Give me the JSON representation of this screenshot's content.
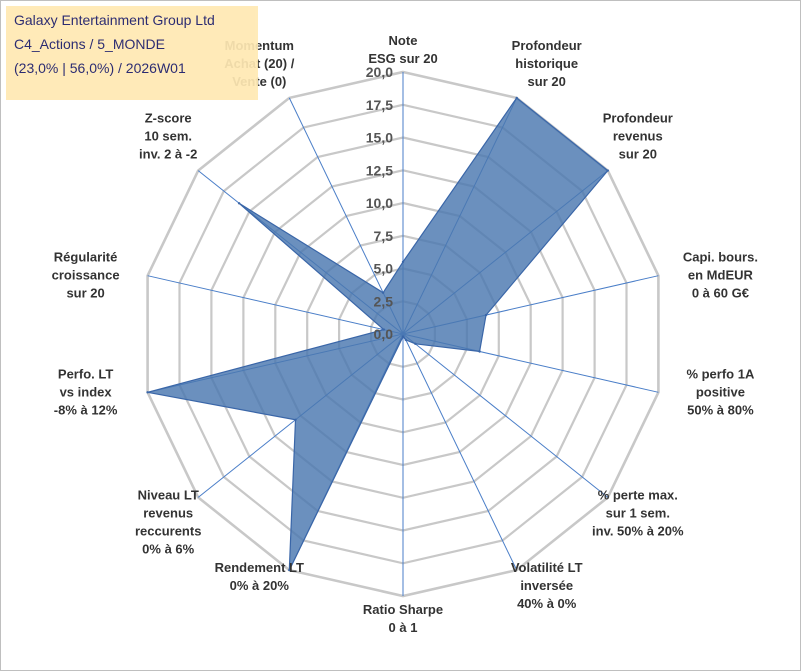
{
  "info": {
    "company": "Galaxy Entertainment Group Ltd",
    "category": "C4_Actions / 5_MONDE",
    "ratio": "(23,0% | 56,0%) / 2026W01"
  },
  "colors": {
    "fill": "#4a78b0",
    "stroke": "#3a66a8",
    "grid": "#c8c8c8",
    "spoke": "#4a7ec8"
  },
  "chart_data": {
    "type": "radar",
    "rmin": 0,
    "rmax": 20,
    "ticks": [
      "0,0",
      "2,5",
      "5,0",
      "7,5",
      "10,0",
      "12,5",
      "15,0",
      "17,5",
      "20,0"
    ],
    "axes": [
      {
        "label": [
          "Note",
          "ESG sur 20"
        ],
        "value": 5.5
      },
      {
        "label": [
          "Profondeur",
          "historique",
          "sur 20"
        ],
        "value": 20
      },
      {
        "label": [
          "Profondeur",
          "revenus",
          "sur 20"
        ],
        "value": 20
      },
      {
        "label": [
          "Capi. bours.",
          "en MdEUR",
          "0 à 60 G€"
        ],
        "value": 6.5
      },
      {
        "label": [
          "% perfo 1A",
          "positive",
          "50% à 80%"
        ],
        "value": 6.0
      },
      {
        "label": [
          "% perte max.",
          "sur 1 sem.",
          "inv. 50% à 20%"
        ],
        "value": 1.2
      },
      {
        "label": [
          "Volatilité LT",
          "inversée",
          "40% à 0%"
        ],
        "value": 0.5
      },
      {
        "label": [
          "Ratio Sharpe",
          "0 à 1"
        ],
        "value": 0.2
      },
      {
        "label": [
          "Rendement LT",
          "0% à 20%"
        ],
        "value": 20
      },
      {
        "label": [
          "Niveau LT",
          "revenus",
          "reccurents",
          "0% à 6%"
        ],
        "value": 10.5
      },
      {
        "label": [
          "Perfo. LT",
          "vs index",
          "-8% à 12%"
        ],
        "value": 20
      },
      {
        "label": [
          "Régularité",
          "croissance",
          "sur 20"
        ],
        "value": 1.5
      },
      {
        "label": [
          "Z-score",
          "10 sem.",
          "inv. 2 à -2"
        ],
        "value": 16.0
      },
      {
        "label": [
          "Momentum",
          "Achat (20) /",
          "Vente (0)"
        ],
        "value": 3.5
      }
    ]
  }
}
